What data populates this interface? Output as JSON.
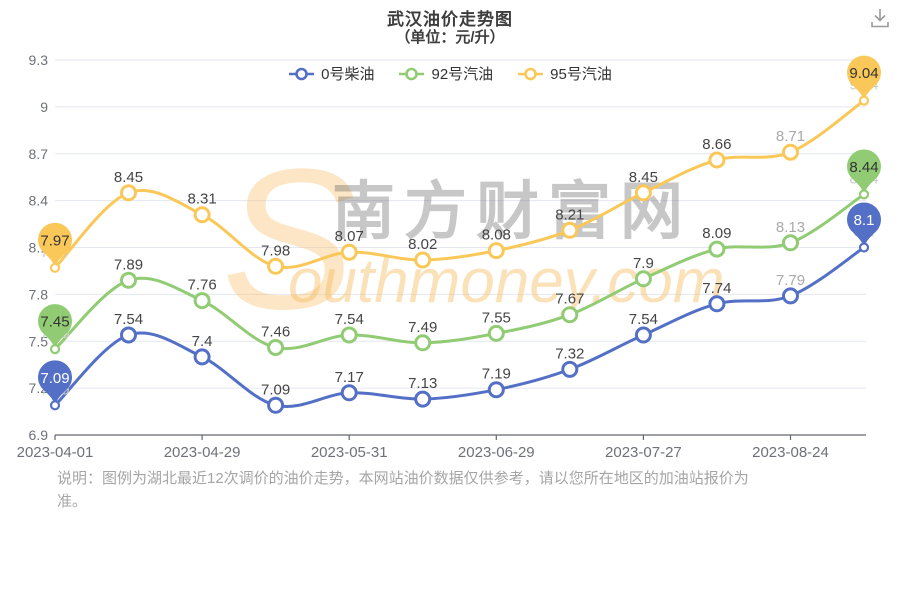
{
  "header": {
    "title": "武汉油价走势图",
    "subtitle": "（单位：元/升）"
  },
  "toolbar": {
    "download_icon": "download"
  },
  "legend": {
    "items": [
      {
        "label": "0号柴油",
        "color": "#5470c6"
      },
      {
        "label": "92号汽油",
        "color": "#91cc75"
      },
      {
        "label": "95号汽油",
        "color": "#fac858"
      }
    ]
  },
  "chart_data": {
    "type": "line",
    "title": "武汉油价走势图（单位：元/升）",
    "x_labels": [
      "2023-04-01",
      "2023-04-29",
      "2023-05-31",
      "2023-06-29",
      "2023-07-27",
      "2023-08-24"
    ],
    "x_label_point_indices": [
      0,
      2,
      4,
      6,
      8,
      10
    ],
    "num_points": 12,
    "y_axis": {
      "min": 6.9,
      "max": 9.3,
      "step": 0.3,
      "tick_values": [
        6.9,
        7.2,
        7.5,
        7.8,
        8.1,
        8.4,
        8.7,
        9,
        9.3
      ],
      "tick_labels": [
        "6.9",
        "7.2",
        "7.5",
        "7.8",
        "8.1",
        "8.4",
        "8.7",
        "9",
        "9.3"
      ]
    },
    "series": [
      {
        "name": "0号柴油",
        "color": "#5470c6",
        "pin_text_color": "#ffffff",
        "values": [
          7.09,
          7.54,
          7.4,
          7.09,
          7.17,
          7.13,
          7.19,
          7.32,
          7.54,
          7.74,
          7.79,
          8.1
        ]
      },
      {
        "name": "92号汽油",
        "color": "#91cc75",
        "pin_text_color": "#333333",
        "values": [
          7.45,
          7.89,
          7.76,
          7.46,
          7.54,
          7.49,
          7.55,
          7.67,
          7.9,
          8.09,
          8.13,
          8.44
        ]
      },
      {
        "name": "95号汽油",
        "color": "#fac858",
        "pin_text_color": "#333333",
        "values": [
          7.97,
          8.45,
          8.31,
          7.98,
          8.07,
          8.02,
          8.08,
          8.21,
          8.45,
          8.66,
          8.71,
          9.04
        ]
      }
    ],
    "pin_indices": [
      0,
      11
    ],
    "muted_label_indices": [
      10
    ],
    "grid": true,
    "legend_position": "top",
    "smooth": true
  },
  "watermark": {
    "swoosh": "S",
    "cn": "南方财富网",
    "en": "outhmoney.com"
  },
  "footer": {
    "note": "说明：图例为湖北最近12次调价的油价走势，本网站油价数据仅供参考，请以您所在地区的加油站报价为准。"
  },
  "colors": {
    "grid_line": "#e4e7ef",
    "axis_line": "#65686f",
    "axis_label": "#6e7179",
    "data_label": "#454545",
    "muted_label": "#a9a9a9",
    "faint_label": "#cccccc"
  }
}
